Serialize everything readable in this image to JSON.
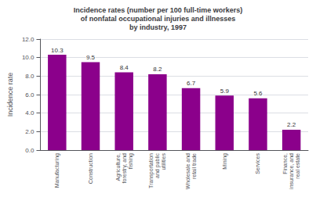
{
  "chart_data": {
    "type": "bar",
    "title": "Incidence rates (number per 100 full-time workers)\nof nonfatal occupational injuries and illnesses\nby industry, 1997",
    "ylabel": "Incidence rate",
    "categories": [
      "Manufacturing",
      "Construction",
      "Agriculture,\nforestry, and\nfishing",
      "Transportation\nand public\nutilities",
      "Wholesale and\nretail trade",
      "Mining",
      "Services",
      "Finance,\ninsurance, and\nreal estate"
    ],
    "values": [
      10.3,
      9.5,
      8.4,
      8.2,
      6.7,
      5.9,
      5.6,
      2.2
    ],
    "color": "#8B008B",
    "ylim": [
      0,
      12.0
    ],
    "yticks": [
      {
        "value": 0.0,
        "label": "0.0"
      },
      {
        "value": 2.0,
        "label": "2.0"
      },
      {
        "value": 4.0,
        "label": "4.0"
      },
      {
        "value": 6.0,
        "label": "6.0"
      },
      {
        "value": 8.0,
        "label": "8.0"
      },
      {
        "value": 10.0,
        "label": "10.0"
      },
      {
        "value": 12.0,
        "label": "12.0"
      }
    ],
    "grid": true,
    "data_labels": true
  }
}
